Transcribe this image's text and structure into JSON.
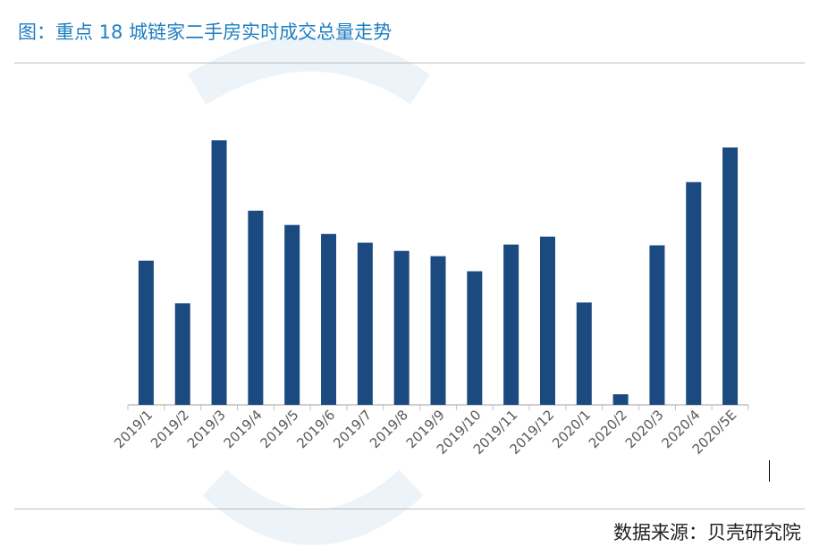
{
  "header": {
    "title": "图：重点 18 城链家二手房实时成交总量走势"
  },
  "footer": {
    "source": "数据来源：贝壳研究院"
  },
  "colors": {
    "bar": "#1b4a80",
    "title": "#1f7fc0",
    "axis": "#bfbfbf",
    "tick_label": "#595959"
  },
  "chart_data": {
    "type": "bar",
    "title": "",
    "xlabel": "",
    "ylabel": "",
    "ylim": [
      0,
      100
    ],
    "grid": false,
    "categories": [
      "2019/1",
      "2019/2",
      "2019/3",
      "2019/4",
      "2019/5",
      "2019/6",
      "2019/7",
      "2019/8",
      "2019/9",
      "2019/10",
      "2019/11",
      "2019/12",
      "2020/1",
      "2020/2",
      "2020/3",
      "2020/4",
      "2020/5E"
    ],
    "values": [
      54.5,
      38.4,
      100,
      73.4,
      68.0,
      64.6,
      61.3,
      58.2,
      56.2,
      50.5,
      60.6,
      63.6,
      38.7,
      4.0,
      60.3,
      84.2,
      97.3
    ]
  }
}
